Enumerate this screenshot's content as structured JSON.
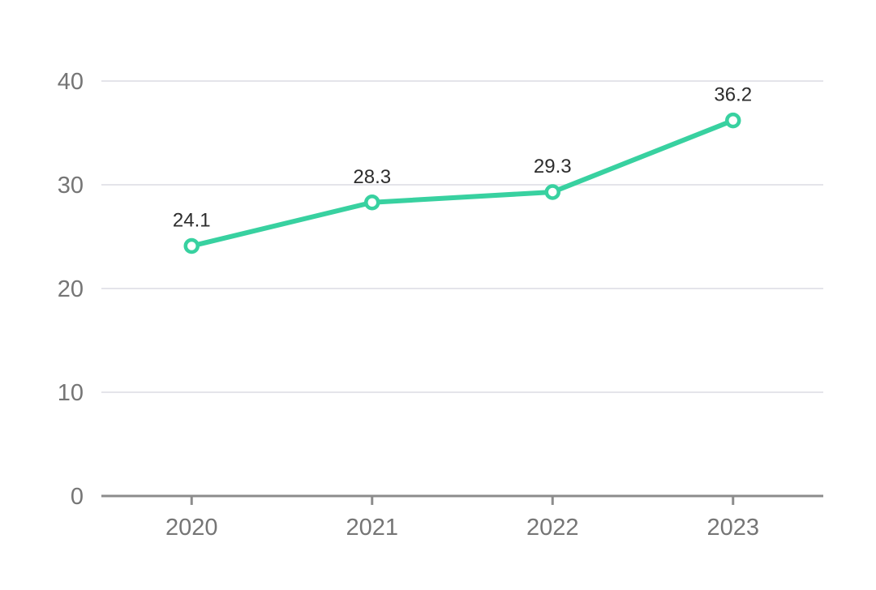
{
  "chart_data": {
    "type": "line",
    "title": "",
    "xlabel": "",
    "ylabel": "",
    "categories": [
      "2020",
      "2021",
      "2022",
      "2023"
    ],
    "values": [
      24.1,
      28.3,
      29.3,
      36.2
    ],
    "point_labels": [
      "24.1",
      "28.3",
      "29.3",
      "36.2"
    ],
    "yticks": [
      0,
      10,
      20,
      30,
      40
    ],
    "ytick_labels": [
      "0",
      "10",
      "20",
      "30",
      "40"
    ],
    "ylim": [
      0,
      40
    ],
    "grid": true,
    "legend": "none",
    "colors": {
      "line": "#38d1a0",
      "marker_fill": "#ffffff",
      "marker_stroke": "#38d1a0",
      "grid_line": "#e4e4ea",
      "axis_line": "#8c8c8c",
      "tick_label": "#757575",
      "data_label": "#2d2d2d",
      "background": "#ffffff"
    }
  }
}
